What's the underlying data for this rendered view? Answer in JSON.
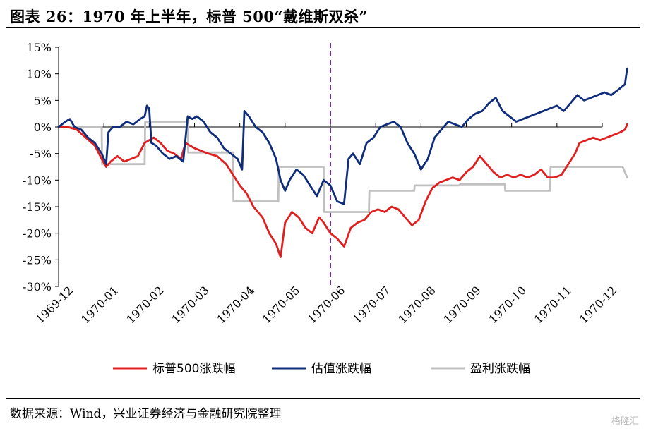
{
  "header": {
    "title": "图表 26：1970 年上半年，标普 500“戴维斯双杀”"
  },
  "footer": {
    "source": "数据来源：Wind，兴业证券经济与金融研究院整理",
    "watermark": "格隆汇"
  },
  "chart_data": {
    "type": "line",
    "x_ticks": [
      "1969-12",
      "1970-01",
      "1970-02",
      "1970-03",
      "1970-04",
      "1970-05",
      "1970-06",
      "1970-07",
      "1970-08",
      "1970-09",
      "1970-10",
      "1970-11",
      "1970-12"
    ],
    "y_ticks": [
      "15%",
      "10%",
      "5%",
      "0%",
      "-5%",
      "-10%",
      "-15%",
      "-20%",
      "-25%",
      "-30%"
    ],
    "ylim": [
      -30,
      15
    ],
    "y_unit": "%",
    "reference_line": {
      "x": 6,
      "color": "#7030A0",
      "style": "dashed"
    },
    "legend_position": "bottom",
    "series": [
      {
        "name": "标普500涨跌幅",
        "color": "#E02020",
        "points": [
          [
            0,
            0
          ],
          [
            0.2,
            0
          ],
          [
            0.4,
            -0.5
          ],
          [
            0.6,
            -2
          ],
          [
            0.8,
            -3.5
          ],
          [
            0.95,
            -6
          ],
          [
            1.05,
            -7.5
          ],
          [
            1.15,
            -6.5
          ],
          [
            1.3,
            -5.5
          ],
          [
            1.45,
            -6.5
          ],
          [
            1.6,
            -6
          ],
          [
            1.75,
            -5.5
          ],
          [
            1.9,
            -3
          ],
          [
            2.0,
            -2.5
          ],
          [
            2.1,
            -2
          ],
          [
            2.25,
            -3
          ],
          [
            2.4,
            -4.5
          ],
          [
            2.55,
            -5
          ],
          [
            2.7,
            -6
          ],
          [
            2.8,
            -3
          ],
          [
            2.9,
            -3.5
          ],
          [
            3.0,
            -4
          ],
          [
            3.15,
            -4.5
          ],
          [
            3.3,
            -5
          ],
          [
            3.5,
            -5.5
          ],
          [
            3.7,
            -7
          ],
          [
            3.85,
            -9
          ],
          [
            4.0,
            -11
          ],
          [
            4.15,
            -12.5
          ],
          [
            4.3,
            -15
          ],
          [
            4.5,
            -17
          ],
          [
            4.65,
            -20
          ],
          [
            4.8,
            -22
          ],
          [
            4.9,
            -24.5
          ],
          [
            5.0,
            -18
          ],
          [
            5.15,
            -16
          ],
          [
            5.3,
            -17
          ],
          [
            5.45,
            -19
          ],
          [
            5.6,
            -20
          ],
          [
            5.75,
            -17
          ],
          [
            5.85,
            -18
          ],
          [
            6.0,
            -20
          ],
          [
            6.15,
            -21
          ],
          [
            6.3,
            -22.5
          ],
          [
            6.45,
            -19
          ],
          [
            6.6,
            -18
          ],
          [
            6.75,
            -17.5
          ],
          [
            6.9,
            -16
          ],
          [
            7.05,
            -15.5
          ],
          [
            7.2,
            -16
          ],
          [
            7.35,
            -15
          ],
          [
            7.5,
            -15.5
          ],
          [
            7.65,
            -17
          ],
          [
            7.8,
            -18.5
          ],
          [
            7.95,
            -17.5
          ],
          [
            8.1,
            -14
          ],
          [
            8.25,
            -11.5
          ],
          [
            8.4,
            -10.5
          ],
          [
            8.55,
            -10
          ],
          [
            8.7,
            -9.5
          ],
          [
            8.85,
            -10
          ],
          [
            9.0,
            -8.5
          ],
          [
            9.15,
            -7.5
          ],
          [
            9.3,
            -5.5
          ],
          [
            9.45,
            -7
          ],
          [
            9.6,
            -8.5
          ],
          [
            9.75,
            -9.5
          ],
          [
            9.9,
            -9
          ],
          [
            10.05,
            -9.5
          ],
          [
            10.2,
            -9
          ],
          [
            10.35,
            -9.5
          ],
          [
            10.5,
            -9
          ],
          [
            10.65,
            -8
          ],
          [
            10.8,
            -9.5
          ],
          [
            10.95,
            -9.5
          ],
          [
            11.1,
            -9
          ],
          [
            11.25,
            -7
          ],
          [
            11.4,
            -5
          ],
          [
            11.5,
            -3
          ],
          [
            11.65,
            -2.5
          ],
          [
            11.8,
            -2
          ],
          [
            11.95,
            -2.5
          ],
          [
            12.1,
            -2
          ],
          [
            12.25,
            -1.5
          ],
          [
            12.4,
            -1
          ],
          [
            12.5,
            -0.5
          ],
          [
            12.55,
            0.5
          ]
        ]
      },
      {
        "name": "估值涨跌幅",
        "color": "#0F2D7A",
        "points": [
          [
            0,
            0
          ],
          [
            0.15,
            1
          ],
          [
            0.25,
            1.5
          ],
          [
            0.35,
            0
          ],
          [
            0.5,
            -0.5
          ],
          [
            0.65,
            -2
          ],
          [
            0.8,
            -3
          ],
          [
            0.95,
            -5
          ],
          [
            1.05,
            -7
          ],
          [
            1.1,
            -1
          ],
          [
            1.2,
            0
          ],
          [
            1.35,
            0
          ],
          [
            1.5,
            1
          ],
          [
            1.65,
            0.5
          ],
          [
            1.8,
            1.5
          ],
          [
            1.9,
            2
          ],
          [
            1.95,
            4
          ],
          [
            2.0,
            3.5
          ],
          [
            2.05,
            -3
          ],
          [
            2.15,
            -3.5
          ],
          [
            2.3,
            -5
          ],
          [
            2.45,
            -6
          ],
          [
            2.6,
            -5.5
          ],
          [
            2.75,
            -6.5
          ],
          [
            2.85,
            2
          ],
          [
            2.95,
            1.5
          ],
          [
            3.05,
            2
          ],
          [
            3.2,
            1
          ],
          [
            3.35,
            -1
          ],
          [
            3.5,
            -2
          ],
          [
            3.65,
            -4
          ],
          [
            3.8,
            -5
          ],
          [
            3.95,
            -6
          ],
          [
            4.05,
            -8
          ],
          [
            4.1,
            3
          ],
          [
            4.2,
            2
          ],
          [
            4.35,
            0
          ],
          [
            4.5,
            -1
          ],
          [
            4.65,
            -3
          ],
          [
            4.8,
            -6
          ],
          [
            4.9,
            -10
          ],
          [
            5.0,
            -12
          ],
          [
            5.1,
            -10
          ],
          [
            5.25,
            -8
          ],
          [
            5.4,
            -9
          ],
          [
            5.55,
            -11
          ],
          [
            5.7,
            -13
          ],
          [
            5.85,
            -10
          ],
          [
            6.0,
            -11
          ],
          [
            6.15,
            -14
          ],
          [
            6.3,
            -14.5
          ],
          [
            6.4,
            -6
          ],
          [
            6.5,
            -5
          ],
          [
            6.65,
            -7
          ],
          [
            6.8,
            -3
          ],
          [
            6.95,
            -2
          ],
          [
            7.1,
            0
          ],
          [
            7.25,
            0.5
          ],
          [
            7.4,
            1
          ],
          [
            7.55,
            0
          ],
          [
            7.7,
            -3
          ],
          [
            7.85,
            -5
          ],
          [
            8.0,
            -8
          ],
          [
            8.15,
            -6
          ],
          [
            8.3,
            -2
          ],
          [
            8.45,
            -0.5
          ],
          [
            8.6,
            1
          ],
          [
            8.75,
            0.5
          ],
          [
            8.9,
            0
          ],
          [
            9.05,
            1.5
          ],
          [
            9.2,
            2.5
          ],
          [
            9.35,
            3
          ],
          [
            9.5,
            4.5
          ],
          [
            9.65,
            5.5
          ],
          [
            9.8,
            3
          ],
          [
            9.95,
            2
          ],
          [
            10.1,
            1
          ],
          [
            10.25,
            1.5
          ],
          [
            10.4,
            2
          ],
          [
            10.55,
            2.5
          ],
          [
            10.7,
            3
          ],
          [
            10.85,
            3.5
          ],
          [
            11.0,
            4
          ],
          [
            11.15,
            3
          ],
          [
            11.3,
            4.5
          ],
          [
            11.45,
            6
          ],
          [
            11.6,
            5
          ],
          [
            11.75,
            5.5
          ],
          [
            11.9,
            6
          ],
          [
            12.05,
            6.5
          ],
          [
            12.2,
            6
          ],
          [
            12.35,
            7
          ],
          [
            12.5,
            8
          ],
          [
            12.55,
            11
          ]
        ]
      },
      {
        "name": "盈利涨跌幅",
        "color": "#C0C0C0",
        "points": [
          [
            0,
            0
          ],
          [
            0.95,
            0
          ],
          [
            0.96,
            -7
          ],
          [
            1.9,
            -7
          ],
          [
            1.91,
            1
          ],
          [
            2.85,
            1
          ],
          [
            2.86,
            -4.8
          ],
          [
            3.85,
            -4.8
          ],
          [
            3.86,
            -14
          ],
          [
            4.85,
            -14
          ],
          [
            4.86,
            -7.5
          ],
          [
            5.85,
            -7.5
          ],
          [
            5.86,
            -16
          ],
          [
            6.85,
            -16
          ],
          [
            6.86,
            -12
          ],
          [
            7.85,
            -12
          ],
          [
            7.86,
            -11
          ],
          [
            8.85,
            -11
          ],
          [
            8.86,
            -10.8
          ],
          [
            9.85,
            -10.8
          ],
          [
            9.86,
            -12
          ],
          [
            10.85,
            -12
          ],
          [
            10.86,
            -7.5
          ],
          [
            11.85,
            -7.5
          ],
          [
            11.86,
            -7.5
          ],
          [
            12.45,
            -7.5
          ],
          [
            12.55,
            -9.5
          ]
        ]
      }
    ]
  }
}
